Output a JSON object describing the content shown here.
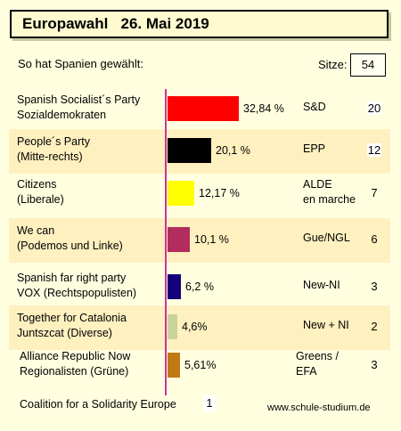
{
  "title": "Europawahl   26. Mai 2019",
  "subtitle": "So hat Spanien gewählt:",
  "sitze_label": "Sitze:",
  "sitze_total": "54",
  "footer_party": "Coalition for a Solidarity Europe",
  "footer_seats": "1",
  "url": "www.schule-studium.de",
  "chart_data": {
    "type": "bar",
    "title": "Europawahl   26. Mai 2019",
    "categories": [
      "Spanish Socialist´s Party Sozialdemokraten",
      "People´s Party (Mitte-rechts)",
      "Citizens (Liberale)",
      "We can (Podemos und Linke)",
      "Spanish far right party VOX (Rechtspopulisten)",
      "Together for Catalonia Juntszcat (Diverse)",
      "Alliance Republic Now Regionalisten (Grüne)"
    ],
    "values": [
      32.84,
      20.1,
      12.17,
      10.1,
      6.2,
      4.6,
      5.61
    ],
    "unit": "%"
  },
  "parties": [
    {
      "line1": "Spanish Socialist´s Party",
      "line2": "Sozialdemokraten",
      "value": 32.84,
      "pct": "32,84 %",
      "group": "S&D",
      "seats": "20",
      "color": "#ff0000"
    },
    {
      "line1": "People´s Party",
      "line2": "(Mitte-rechts)",
      "value": 20.1,
      "pct": "20,1 %",
      "group": "EPP",
      "seats": "12",
      "color": "#000000"
    },
    {
      "line1": "Citizens",
      "line2": "(Liberale)",
      "value": 12.17,
      "pct": "12,17 %",
      "group": "ALDE\nen marche",
      "seats": "7",
      "color": "#ffff00"
    },
    {
      "line1": "We can",
      "line2": "(Podemos und Linke)",
      "value": 10.1,
      "pct": "10,1 %",
      "group": "Gue/NGL",
      "seats": "6",
      "color": "#b22d5e"
    },
    {
      "line1": "Spanish far right party",
      "line2": "VOX (Rechtspopulisten)",
      "value": 6.2,
      "pct": "6,2 %",
      "group": "New-NI",
      "seats": "3",
      "color": "#14007a"
    },
    {
      "line1": "Together for Catalonia",
      "line2": "Juntszcat (Diverse)",
      "value": 4.6,
      "pct": "4,6%",
      "group": "New + NI",
      "seats": "2",
      "color": "#c8d39a"
    },
    {
      "line1": "Alliance Republic Now",
      "line2": "Regionalisten (Grüne)",
      "value": 5.61,
      "pct": "5,61%",
      "group": "Greens /\nEFA",
      "seats": "3",
      "color": "#c07a14"
    }
  ]
}
